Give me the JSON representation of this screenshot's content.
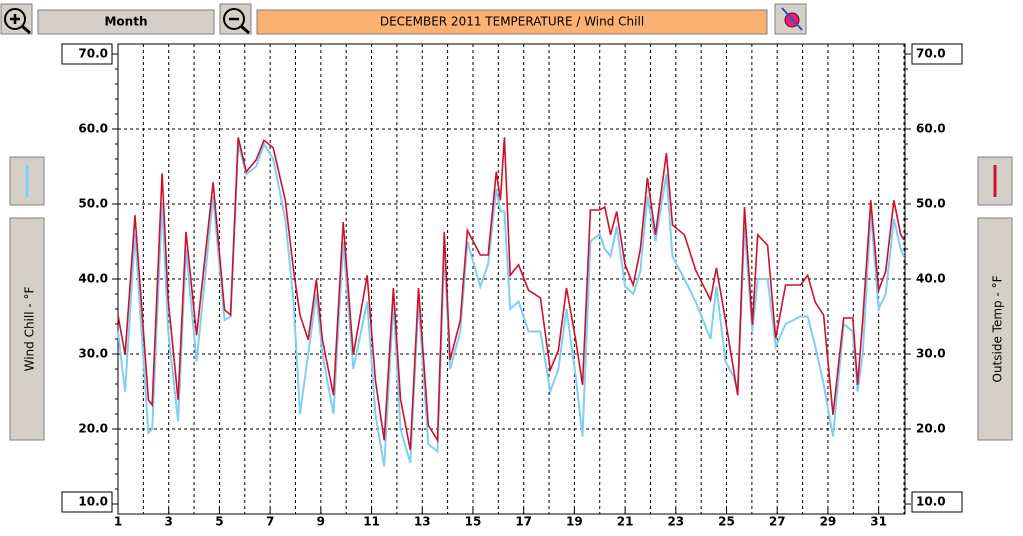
{
  "chart_data": {
    "type": "line",
    "title": "DECEMBER  2011  TEMPERATURE / Wind Chill",
    "period": "Month",
    "ylabel": "Wind Chill - °F",
    "y2label": "Outside Temp - °F",
    "xlim": [
      1,
      32
    ],
    "xticks": [
      1,
      3,
      5,
      7,
      9,
      11,
      13,
      15,
      17,
      19,
      21,
      23,
      25,
      27,
      29,
      31
    ],
    "ylim": [
      10,
      70
    ],
    "yticks": [
      {
        "value": 10,
        "label": "10.0"
      },
      {
        "value": 20,
        "label": "20.0"
      },
      {
        "value": 30,
        "label": "30.0"
      },
      {
        "value": 40,
        "label": "40.0"
      },
      {
        "value": 50,
        "label": "50.0"
      },
      {
        "value": 60,
        "label": "60.0"
      },
      {
        "value": 70,
        "label": "70.0"
      }
    ],
    "y2lim": [
      10,
      70
    ],
    "y2ticks": [
      {
        "value": 10,
        "label": "10.0"
      },
      {
        "value": 20,
        "label": "20.0"
      },
      {
        "value": 30,
        "label": "30.0"
      },
      {
        "value": 40,
        "label": "40.0"
      },
      {
        "value": 50,
        "label": "50.0"
      },
      {
        "value": 60,
        "label": "60.0"
      },
      {
        "value": 70,
        "label": "70.0"
      }
    ],
    "grid": true,
    "x": [
      1.0,
      1.28,
      1.67,
      2.2,
      2.35,
      2.74,
      2.98,
      3.37,
      3.68,
      4.1,
      4.75,
      5.2,
      5.44,
      5.74,
      6.06,
      6.45,
      6.76,
      7.12,
      7.6,
      7.92,
      8.18,
      8.5,
      8.82,
      9.06,
      9.5,
      9.88,
      10.28,
      10.83,
      11.15,
      11.5,
      11.86,
      12.14,
      12.53,
      12.85,
      13.24,
      13.6,
      13.87,
      14.1,
      14.5,
      14.78,
      15.29,
      15.6,
      15.92,
      16.08,
      16.24,
      16.47,
      16.8,
      17.19,
      17.66,
      18.05,
      18.37,
      18.69,
      19.05,
      19.32,
      19.63,
      20.0,
      20.2,
      20.43,
      20.67,
      21.0,
      21.32,
      21.6,
      21.88,
      22.2,
      22.63,
      22.87,
      23.34,
      23.78,
      24.37,
      24.6,
      24.96,
      25.28,
      25.44,
      25.71,
      26.02,
      26.23,
      26.62,
      26.94,
      27.33,
      27.92,
      28.2,
      28.5,
      28.83,
      29.2,
      29.62,
      29.98,
      30.17,
      30.37,
      30.69,
      31.0,
      31.28,
      31.6,
      31.87,
      32.0
    ],
    "series": [
      {
        "color": "#7fcff5",
        "values": [
          33,
          25,
          46,
          19.5,
          20,
          50,
          33,
          21,
          44,
          29,
          51,
          34.5,
          35,
          58,
          54,
          55,
          58,
          56,
          48,
          37,
          22,
          30,
          38,
          30,
          22,
          45,
          28,
          37,
          22,
          15,
          37,
          20,
          15.5,
          37,
          18,
          17,
          44,
          28,
          33,
          45,
          39,
          42,
          52,
          49,
          49,
          36,
          37,
          33,
          33,
          25,
          28,
          36,
          27,
          19,
          45,
          46,
          44,
          43,
          47,
          39,
          38,
          41,
          51,
          45,
          54,
          43,
          40,
          37,
          32,
          39,
          29,
          27,
          25,
          47,
          33,
          40,
          40,
          31,
          34,
          35,
          35,
          31,
          26,
          19,
          34,
          33,
          25,
          30,
          49,
          36,
          38,
          48,
          44,
          43
        ]
      },
      {
        "color": "#d0102a",
        "axis": "y2",
        "values": [
          35.2,
          29.9,
          48.5,
          23.9,
          23.2,
          54.1,
          37.2,
          23.9,
          46.3,
          32.5,
          52.9,
          35.9,
          35.2,
          58.9,
          54.3,
          55.9,
          58.5,
          57.5,
          50.5,
          41.2,
          35.2,
          31.9,
          39.9,
          31.9,
          24.5,
          47.6,
          29.9,
          40.5,
          26.5,
          18.5,
          38.8,
          24,
          17.2,
          38.8,
          20.5,
          18.5,
          46.3,
          29.2,
          34.5,
          46.5,
          43.2,
          43.2,
          54.3,
          50.5,
          58.9,
          40.5,
          41.9,
          38.5,
          37.5,
          27.9,
          30.5,
          38.8,
          31.9,
          25.9,
          49.2,
          49.2,
          49.6,
          45.9,
          49,
          41.9,
          39.2,
          43.9,
          53.5,
          45.9,
          56.8,
          47.2,
          45.9,
          41.2,
          37.2,
          41.5,
          34.5,
          27.9,
          24.5,
          49.6,
          33.9,
          45.9,
          44.5,
          32.1,
          39.2,
          39.2,
          40.5,
          36.9,
          35.2,
          21.9,
          34.8,
          34.8,
          25.9,
          34.5,
          50.5,
          38.5,
          41,
          50.5,
          45.9,
          45.2
        ]
      }
    ]
  }
}
